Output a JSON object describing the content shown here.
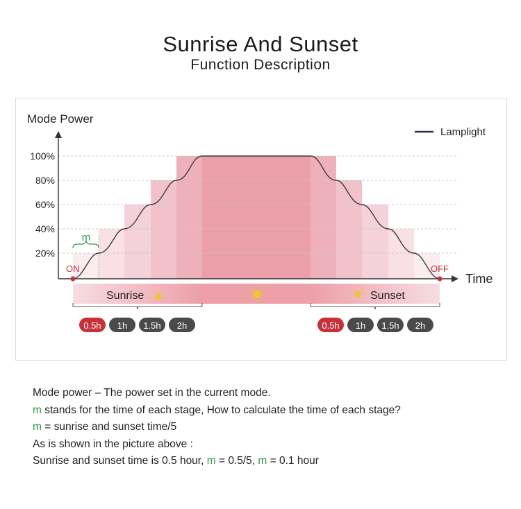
{
  "header": {
    "title": "Sunrise And Sunset",
    "subtitle": "Function Description"
  },
  "diagram": {
    "y_axis_label": "Mode Power",
    "x_axis_label": "Time",
    "y_ticks": [
      "100%",
      "80%",
      "60%",
      "40%",
      "20%"
    ],
    "legend": "Lamplight",
    "on_label": "ON",
    "off_label": "OFF",
    "stage_label": "m",
    "sunrise_label": "Sunrise",
    "sunset_label": "Sunset",
    "sunrise_options": [
      "0.5h",
      "1h",
      "1.5h",
      "2h"
    ],
    "sunset_options": [
      "0.5h",
      "1h",
      "1.5h",
      "2h"
    ],
    "selected_option": "0.5h",
    "colors": {
      "line": "#3a3a3a",
      "accent_green": "#2e9a4a",
      "on_off_red": "#c8303a",
      "selected_pill": "#c8303a",
      "pill": "#4a4a4a"
    }
  },
  "notes": {
    "line1": "Mode power – The power set in the current mode.",
    "line2_m": "m",
    "line2_rest": " stands for the time of each stage, How to calculate the time of each stage?",
    "line3_m": "m",
    "line3_rest": " = sunrise and sunset time/5",
    "line4": "As is shown in the picture above :",
    "line5_a": "Sunrise and sunset time is 0.5 hour, ",
    "line5_m1": "m",
    "line5_b": " = 0.5/5, ",
    "line5_m2": "m",
    "line5_c": " = 0.1 hour"
  }
}
